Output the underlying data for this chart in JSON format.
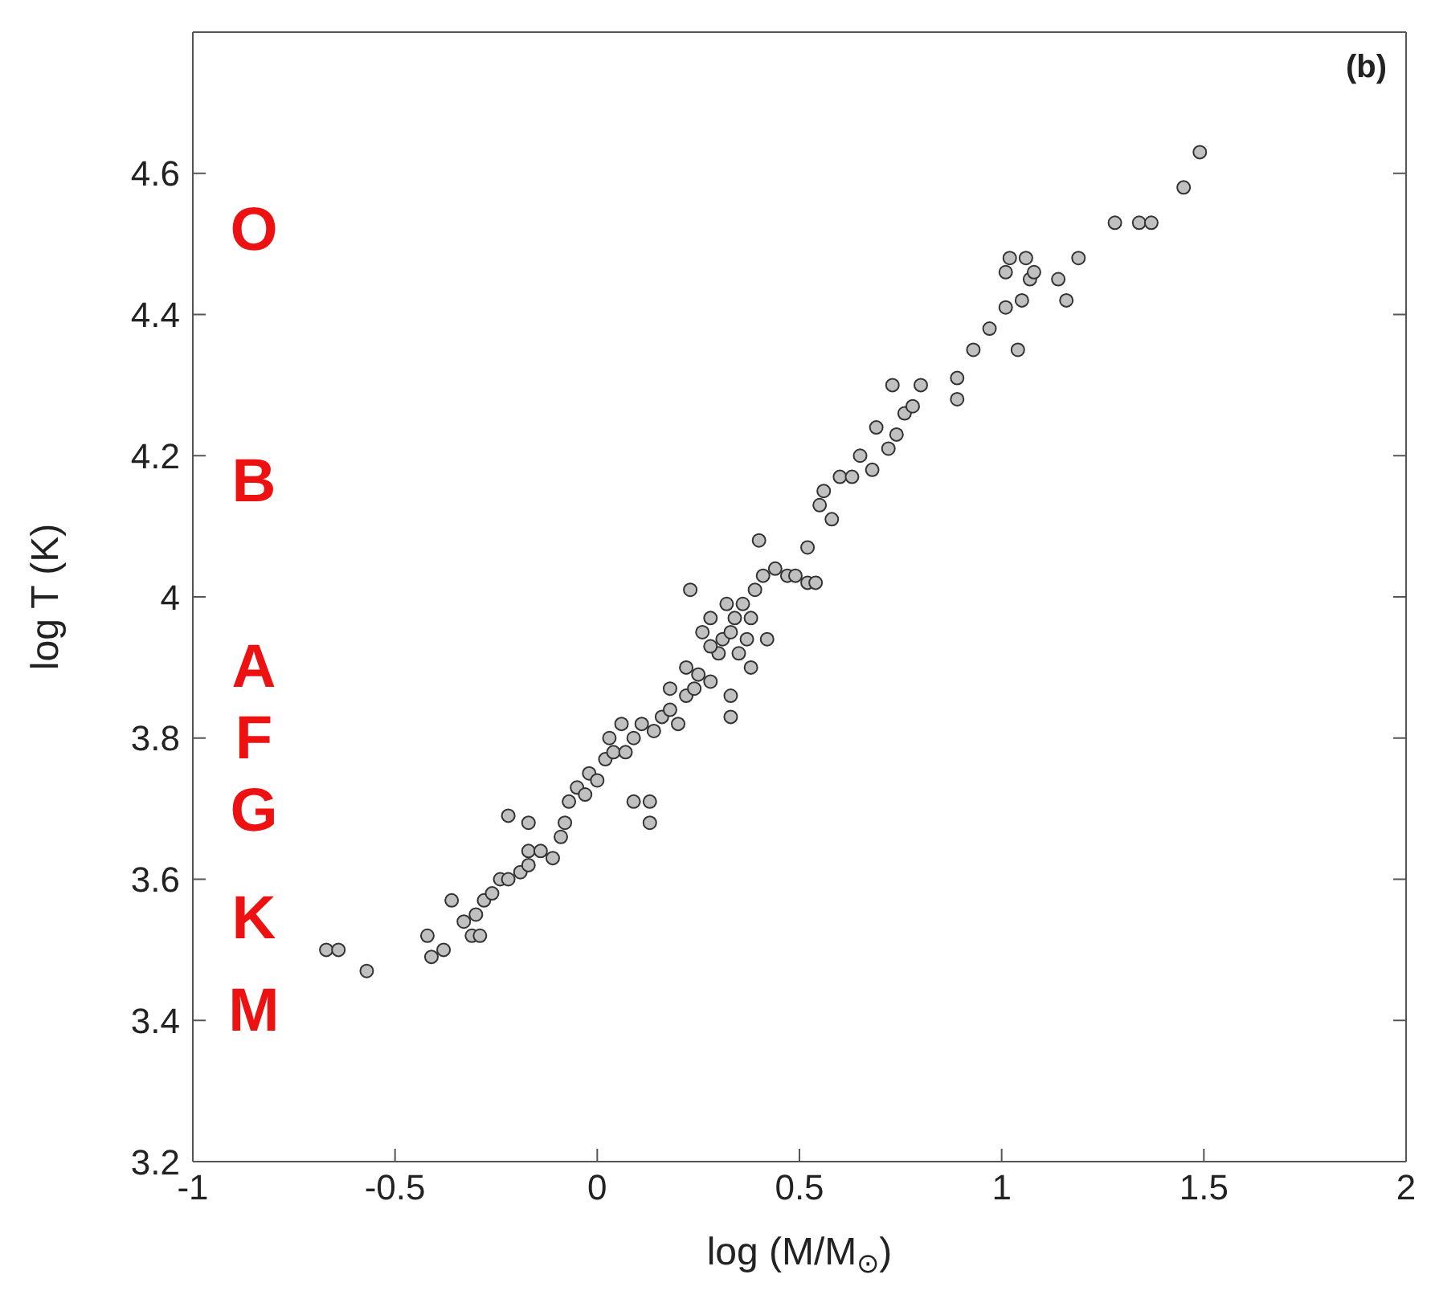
{
  "chart_data": {
    "type": "scatter",
    "xlabel": "log (M/M$_{⊙}$)",
    "ylabel": "log T (K)",
    "xlim": [
      -1,
      2
    ],
    "xticks": [
      -1,
      -0.5,
      0,
      0.5,
      1,
      1.5,
      2
    ],
    "ylim": [
      3.2,
      4.8
    ],
    "yticks": [
      3.2,
      3.4,
      3.6,
      3.8,
      4,
      4.2,
      4.4,
      4.6
    ],
    "legend": false,
    "marker": "circle",
    "annotations": [
      "(b)",
      "O",
      "B",
      "A",
      "F",
      "G",
      "K",
      "M"
    ],
    "series": [
      {
        "color": "#c0c0c0",
        "x": [
          -0.67,
          -0.64,
          -0.57,
          -0.42,
          -0.41,
          -0.38,
          -0.36,
          -0.33,
          -0.31,
          -0.29,
          -0.3,
          -0.28,
          -0.26,
          -0.24,
          -0.22,
          -0.19,
          -0.22,
          -0.17,
          -0.17,
          -0.17,
          -0.14,
          -0.11,
          -0.09,
          -0.08,
          -0.07,
          -0.05,
          -0.03,
          -0.02,
          0.0,
          0.02,
          0.04,
          0.07,
          0.09,
          0.13,
          0.13,
          0.09,
          0.11,
          0.14,
          0.16,
          0.18,
          0.2,
          0.22,
          0.24,
          0.25,
          0.23,
          0.28,
          0.3,
          0.31,
          0.33,
          0.34,
          0.33,
          0.33,
          0.36,
          0.35,
          0.38,
          0.41,
          0.4,
          0.38,
          0.37,
          0.42,
          0.26,
          0.28,
          0.28,
          0.32,
          0.44,
          0.47,
          0.49,
          0.52,
          0.54,
          0.52,
          0.55,
          0.56,
          0.58,
          0.6,
          0.63,
          0.65,
          0.69,
          0.72,
          0.74,
          0.68,
          0.76,
          0.78,
          0.73,
          0.8,
          0.89,
          0.89,
          0.93,
          0.97,
          1.01,
          1.01,
          1.02,
          1.06,
          1.07,
          1.04,
          1.05,
          1.08,
          1.14,
          1.16,
          1.19,
          1.28,
          1.34,
          1.37,
          1.45,
          1.49,
          0.03,
          0.06,
          0.18,
          0.22,
          0.39
        ],
        "values": [
          3.5,
          3.5,
          3.47,
          3.52,
          3.49,
          3.5,
          3.57,
          3.54,
          3.52,
          3.52,
          3.55,
          3.57,
          3.58,
          3.6,
          3.6,
          3.61,
          3.69,
          3.68,
          3.62,
          3.64,
          3.64,
          3.63,
          3.66,
          3.68,
          3.71,
          3.73,
          3.72,
          3.75,
          3.74,
          3.77,
          3.78,
          3.78,
          3.71,
          3.71,
          3.68,
          3.8,
          3.82,
          3.81,
          3.83,
          3.84,
          3.82,
          3.86,
          3.87,
          3.89,
          4.01,
          3.88,
          3.92,
          3.94,
          3.95,
          3.97,
          3.83,
          3.86,
          3.99,
          3.92,
          3.9,
          4.03,
          4.08,
          3.97,
          3.94,
          3.94,
          3.95,
          3.93,
          3.97,
          3.99,
          4.04,
          4.03,
          4.03,
          4.02,
          4.02,
          4.07,
          4.13,
          4.15,
          4.11,
          4.17,
          4.17,
          4.2,
          4.24,
          4.21,
          4.23,
          4.18,
          4.26,
          4.27,
          4.3,
          4.3,
          4.31,
          4.28,
          4.35,
          4.38,
          4.41,
          4.46,
          4.48,
          4.48,
          4.45,
          4.35,
          4.42,
          4.46,
          4.45,
          4.42,
          4.48,
          4.53,
          4.53,
          4.53,
          4.58,
          4.63,
          3.8,
          3.82,
          3.87,
          3.9,
          4.01
        ]
      }
    ]
  }
}
